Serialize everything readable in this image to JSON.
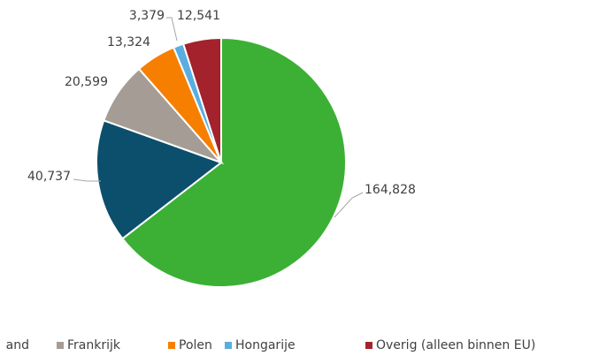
{
  "chart_data": {
    "type": "pie",
    "categories": [
      null,
      "and",
      "Frankrijk",
      "Polen",
      "Hongarije",
      "Overig (alleen binnen EU)"
    ],
    "values": [
      164828,
      40737,
      20599,
      13324,
      3379,
      12541
    ],
    "value_labels": [
      "164,828",
      "40,737",
      "20,599",
      "13,324",
      "3,379",
      "12,541"
    ],
    "colors": [
      "#3cb035",
      "#0b4f6c",
      "#a59d95",
      "#f77f00",
      "#5aade0",
      "#a4222c"
    ],
    "legend": "bottom"
  }
}
